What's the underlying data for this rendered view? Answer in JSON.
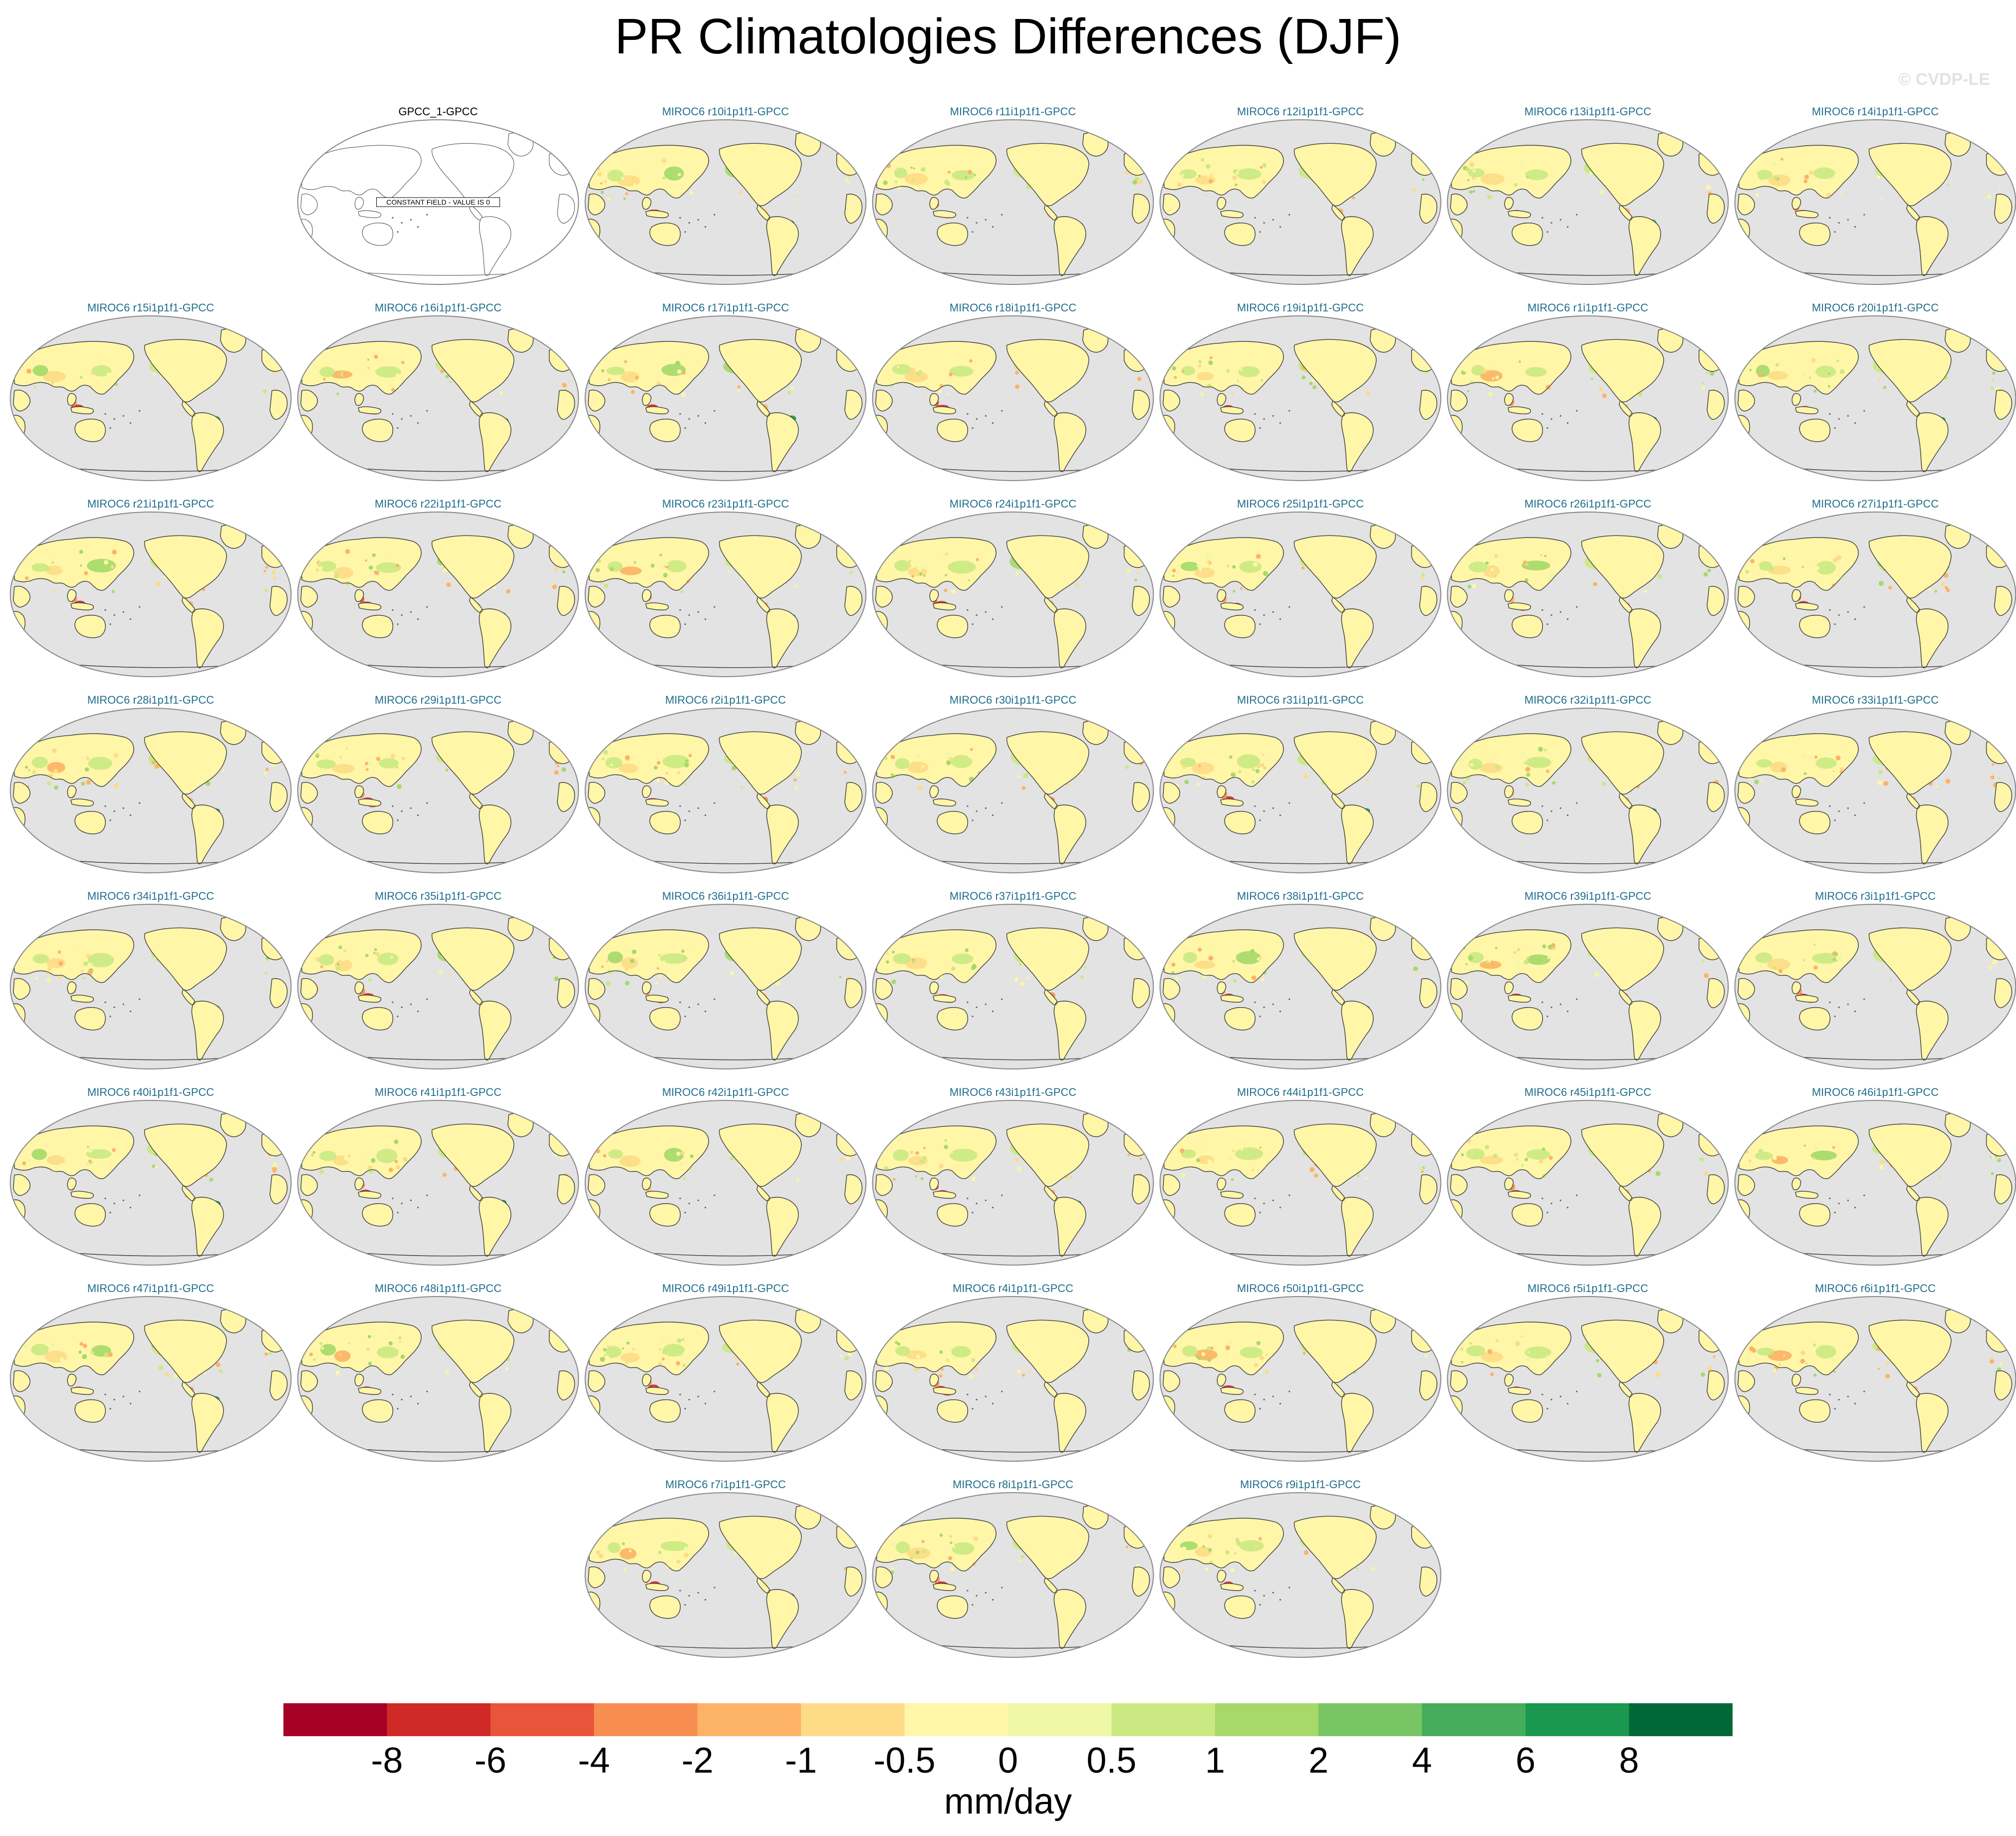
{
  "title": "PR Climatologies Differences (DJF)",
  "watermark": "© CVDP-LE",
  "colors": {
    "ocean": "#e3e3e3",
    "frame": "#888888",
    "coast": "#444444",
    "title_model": "#1f6e8c",
    "title_obs": "#000000"
  },
  "obs_panel": {
    "title": "GPCC_1-GPCC",
    "note": "CONSTANT FIELD - VALUE IS 0"
  },
  "model_panels": [
    "MIROC6 r10i1p1f1-GPCC",
    "MIROC6 r11i1p1f1-GPCC",
    "MIROC6 r12i1p1f1-GPCC",
    "MIROC6 r13i1p1f1-GPCC",
    "MIROC6 r14i1p1f1-GPCC",
    "MIROC6 r15i1p1f1-GPCC",
    "MIROC6 r16i1p1f1-GPCC",
    "MIROC6 r17i1p1f1-GPCC",
    "MIROC6 r18i1p1f1-GPCC",
    "MIROC6 r19i1p1f1-GPCC",
    "MIROC6 r1i1p1f1-GPCC",
    "MIROC6 r20i1p1f1-GPCC",
    "MIROC6 r21i1p1f1-GPCC",
    "MIROC6 r22i1p1f1-GPCC",
    "MIROC6 r23i1p1f1-GPCC",
    "MIROC6 r24i1p1f1-GPCC",
    "MIROC6 r25i1p1f1-GPCC",
    "MIROC6 r26i1p1f1-GPCC",
    "MIROC6 r27i1p1f1-GPCC",
    "MIROC6 r28i1p1f1-GPCC",
    "MIROC6 r29i1p1f1-GPCC",
    "MIROC6 r2i1p1f1-GPCC",
    "MIROC6 r30i1p1f1-GPCC",
    "MIROC6 r31i1p1f1-GPCC",
    "MIROC6 r32i1p1f1-GPCC",
    "MIROC6 r33i1p1f1-GPCC",
    "MIROC6 r34i1p1f1-GPCC",
    "MIROC6 r35i1p1f1-GPCC",
    "MIROC6 r36i1p1f1-GPCC",
    "MIROC6 r37i1p1f1-GPCC",
    "MIROC6 r38i1p1f1-GPCC",
    "MIROC6 r39i1p1f1-GPCC",
    "MIROC6 r3i1p1f1-GPCC",
    "MIROC6 r40i1p1f1-GPCC",
    "MIROC6 r41i1p1f1-GPCC",
    "MIROC6 r42i1p1f1-GPCC",
    "MIROC6 r43i1p1f1-GPCC",
    "MIROC6 r44i1p1f1-GPCC",
    "MIROC6 r45i1p1f1-GPCC",
    "MIROC6 r46i1p1f1-GPCC",
    "MIROC6 r47i1p1f1-GPCC",
    "MIROC6 r48i1p1f1-GPCC",
    "MIROC6 r49i1p1f1-GPCC",
    "MIROC6 r4i1p1f1-GPCC",
    "MIROC6 r50i1p1f1-GPCC",
    "MIROC6 r5i1p1f1-GPCC",
    "MIROC6 r6i1p1f1-GPCC",
    "MIROC6 r7i1p1f1-GPCC",
    "MIROC6 r8i1p1f1-GPCC",
    "MIROC6 r9i1p1f1-GPCC"
  ],
  "colorbar": {
    "units": "mm/day",
    "labels": [
      "-8",
      "-6",
      "-4",
      "-2",
      "-1",
      "-0.5",
      "0",
      "0.5",
      "1",
      "2",
      "4",
      "6",
      "8"
    ],
    "colors": [
      "#a50026",
      "#d02a27",
      "#e8553a",
      "#f88d52",
      "#fdb366",
      "#fddb87",
      "#fff6a8",
      "#eff8a6",
      "#cbe982",
      "#a6d96a",
      "#78c565",
      "#45ad5c",
      "#1a984f",
      "#006837"
    ]
  },
  "map_land_palette": {
    "dry_scale": [
      "#fddb87",
      "#fdb366",
      "#f88d52",
      "#e8553a",
      "#d02a27"
    ],
    "neutral_scale": [
      "#fff6a8",
      "#eff8a6"
    ],
    "wet_scale": [
      "#cbe982",
      "#a6d96a",
      "#78c565",
      "#45ad5c",
      "#1a984f"
    ]
  }
}
